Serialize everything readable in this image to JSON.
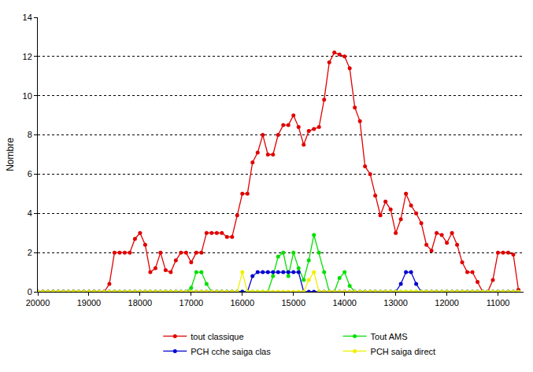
{
  "chart_data": {
    "type": "line",
    "y_label": "Nombre",
    "x": [
      20000,
      19900,
      19800,
      19700,
      19600,
      19500,
      19400,
      19300,
      19200,
      19100,
      19000,
      18900,
      18800,
      18700,
      18600,
      18500,
      18400,
      18300,
      18200,
      18100,
      18000,
      17900,
      17800,
      17700,
      17600,
      17500,
      17400,
      17300,
      17200,
      17100,
      17000,
      16900,
      16800,
      16700,
      16600,
      16500,
      16400,
      16300,
      16200,
      16100,
      16000,
      15900,
      15800,
      15700,
      15600,
      15500,
      15400,
      15300,
      15200,
      15100,
      15000,
      14900,
      14800,
      14700,
      14600,
      14500,
      14400,
      14300,
      14200,
      14100,
      14000,
      13900,
      13800,
      13700,
      13600,
      13500,
      13400,
      13300,
      13200,
      13100,
      13000,
      12900,
      12800,
      12700,
      12600,
      12500,
      12400,
      12300,
      12200,
      12100,
      12000,
      11900,
      11800,
      11700,
      11600,
      11500,
      11400,
      11300,
      11200,
      11100,
      11000,
      10900,
      10800,
      10700,
      10600
    ],
    "series": [
      {
        "name": "tout classique",
        "color": "#e00000",
        "marker": "circle",
        "values": [
          0,
          0,
          0,
          0,
          0,
          0,
          0,
          0,
          0,
          0,
          0,
          0,
          0,
          0,
          0.4,
          2,
          2,
          2,
          2,
          2.7,
          3,
          2.4,
          1,
          1.2,
          2,
          1.1,
          1,
          1.6,
          2,
          2,
          1.5,
          2,
          2,
          3,
          3,
          3,
          3,
          2.8,
          2.8,
          3.9,
          5,
          5,
          6.6,
          7.1,
          8,
          7,
          7,
          8,
          8.5,
          8.5,
          9,
          8.4,
          7.5,
          8.2,
          8.3,
          8.4,
          9.8,
          11.7,
          12.2,
          12.1,
          12,
          11.4,
          9.4,
          8.7,
          6.4,
          6,
          4.9,
          3.9,
          4.6,
          4.2,
          3,
          3.7,
          5,
          4.4,
          4,
          3.5,
          2.4,
          2.1,
          3,
          2.9,
          2.5,
          3,
          2.4,
          1.5,
          1,
          1,
          0.5,
          0,
          0,
          0.6,
          2,
          2,
          2,
          1.9,
          0.1
        ]
      },
      {
        "name": "Tout AMS",
        "color": "#00e000",
        "marker": "circle",
        "values": [
          0,
          0,
          0,
          0,
          0,
          0,
          0,
          0,
          0,
          0,
          0,
          0,
          0,
          0,
          0,
          0,
          0,
          0,
          0,
          0,
          0,
          0,
          0,
          0,
          0,
          0,
          0,
          0,
          0,
          0,
          0.2,
          1,
          1,
          0.4,
          0,
          0,
          0,
          0,
          0,
          0,
          0,
          0,
          0,
          0,
          0,
          0,
          0.8,
          1.8,
          2,
          0.8,
          2,
          1.2,
          0.6,
          1.6,
          2.9,
          2,
          1,
          0,
          0,
          0.7,
          1,
          0.3,
          0,
          0,
          0,
          0,
          0,
          0,
          0,
          0,
          0,
          0,
          0,
          0,
          0,
          0,
          0,
          0,
          0,
          0,
          0,
          0,
          0,
          0,
          0,
          0,
          0,
          0,
          0,
          0,
          0,
          0,
          0,
          0,
          0
        ]
      },
      {
        "name": "PCH cche saiga clas",
        "color": "#0000d0",
        "marker": "circle",
        "values": [
          0,
          0,
          0,
          0,
          0,
          0,
          0,
          0,
          0,
          0,
          0,
          0,
          0,
          0,
          0,
          0,
          0,
          0,
          0,
          0,
          0,
          0,
          0,
          0,
          0,
          0,
          0,
          0,
          0,
          0,
          0,
          0,
          0,
          0,
          0,
          0,
          0,
          0,
          0,
          0,
          0,
          0,
          0.8,
          1,
          1,
          1,
          1,
          1,
          1,
          1,
          1,
          1,
          0,
          0,
          0,
          0,
          0,
          0,
          0,
          0,
          0,
          0,
          0,
          0,
          0,
          0,
          0,
          0,
          0,
          0,
          0,
          0.4,
          1,
          1,
          0.4,
          0,
          0,
          0,
          0,
          0,
          0,
          0,
          0,
          0,
          0,
          0,
          0,
          0,
          0,
          0,
          0,
          0,
          0,
          0,
          0
        ]
      },
      {
        "name": "PCH saiga direct",
        "color": "#f0f000",
        "marker": "circle",
        "values": [
          0,
          0,
          0,
          0,
          0,
          0,
          0,
          0,
          0,
          0,
          0,
          0,
          0,
          0,
          0,
          0,
          0,
          0,
          0,
          0,
          0,
          0,
          0,
          0,
          0,
          0,
          0,
          0,
          0,
          0,
          0,
          0,
          0,
          0,
          0,
          0,
          0,
          0,
          0,
          0,
          1,
          0,
          0,
          0,
          0,
          0,
          0,
          0,
          0,
          0,
          0,
          0,
          0,
          0.6,
          1,
          0,
          0,
          0,
          0,
          0,
          0,
          0,
          0,
          0,
          0,
          0,
          0,
          0,
          0,
          0,
          0,
          0,
          0,
          0,
          0,
          0,
          0,
          0,
          0,
          0,
          0,
          0,
          0,
          0,
          0,
          0,
          0,
          0,
          0,
          0,
          0,
          0,
          0,
          0,
          0
        ]
      }
    ],
    "xlim": [
      20000,
      10500
    ],
    "xticks": [
      20000,
      19000,
      18000,
      17000,
      16000,
      15000,
      14000,
      13000,
      12000,
      11000
    ],
    "ylim": [
      0,
      14
    ],
    "yticks": [
      0,
      2,
      4,
      6,
      8,
      10,
      12,
      14
    ],
    "grid": true,
    "legend": "bottom"
  }
}
